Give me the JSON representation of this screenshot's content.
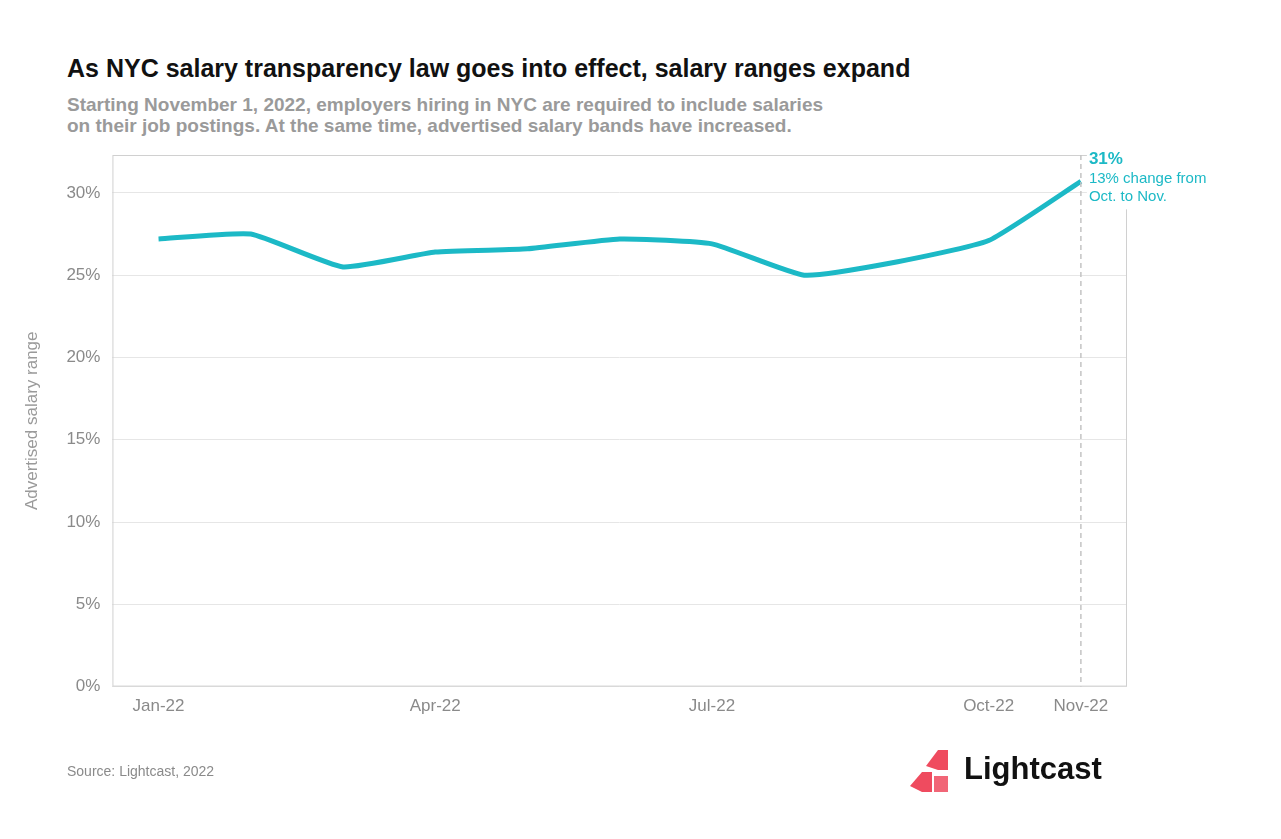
{
  "chart_data": {
    "type": "line",
    "title": "As NYC salary transparency law goes into effect, salary ranges expand",
    "subtitle": [
      "Starting November 1, 2022, employers hiring in NYC are required to include salaries",
      "on their job postings. At the same time, advertised salary bands have increased."
    ],
    "y_label": "Advertised salary range",
    "categories": [
      "Jan-22",
      null,
      null,
      "Apr-22",
      null,
      null,
      "Jul-22",
      null,
      null,
      "Oct-22",
      "Nov-22"
    ],
    "values": [
      27.2,
      27.5,
      25.5,
      26.4,
      26.6,
      27.2,
      26.9,
      25.0,
      25.8,
      27.1,
      30.7
    ],
    "color": "#1cb9c6",
    "ylim": [
      0,
      32.3
    ],
    "yticks": [
      {
        "value": 0,
        "label": "0%"
      },
      {
        "value": 5,
        "label": "5%"
      },
      {
        "value": 10,
        "label": "10%"
      },
      {
        "value": 15,
        "label": "15%"
      },
      {
        "value": 20,
        "label": "20%"
      },
      {
        "value": 25,
        "label": "25%"
      },
      {
        "value": 30,
        "label": "30%"
      }
    ],
    "grid": true,
    "annotation": {
      "category": "Nov-22",
      "label": "31%",
      "text": [
        "13% change from",
        "Oct. to Nov."
      ]
    },
    "source": "Source: Lightcast, 2022",
    "logo": "Lightcast"
  }
}
